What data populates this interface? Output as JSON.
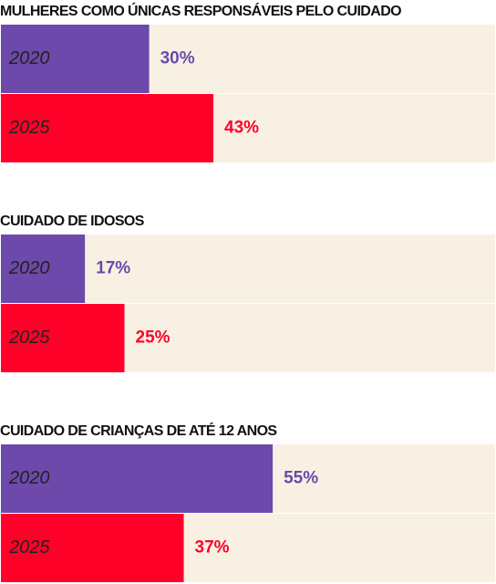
{
  "chart_data": [
    {
      "type": "bar",
      "orientation": "horizontal",
      "title": "MULHERES COMO ÚNICAS RESPONSÁVEIS PELO CUIDADO",
      "categories": [
        "2020",
        "2025"
      ],
      "values": [
        30,
        43
      ],
      "value_labels": [
        "30%",
        "43%"
      ],
      "colors": [
        "#6c49aa",
        "#ff0029"
      ],
      "track_color": "#f8f1e3",
      "xlim": [
        0,
        100
      ]
    },
    {
      "type": "bar",
      "orientation": "horizontal",
      "title": "CUIDADO DE IDOSOS",
      "categories": [
        "2020",
        "2025"
      ],
      "values": [
        17,
        25
      ],
      "value_labels": [
        "17%",
        "25%"
      ],
      "colors": [
        "#6c49aa",
        "#ff0029"
      ],
      "track_color": "#f8f1e3",
      "xlim": [
        0,
        100
      ]
    },
    {
      "type": "bar",
      "orientation": "horizontal",
      "title": "CUIDADO DE CRIANÇAS DE ATÉ 12 ANOS",
      "categories": [
        "2020",
        "2025"
      ],
      "values": [
        55,
        37
      ],
      "value_labels": [
        "55%",
        "37%"
      ],
      "colors": [
        "#6c49aa",
        "#ff0029"
      ],
      "track_color": "#f8f1e3",
      "xlim": [
        0,
        100
      ]
    }
  ]
}
